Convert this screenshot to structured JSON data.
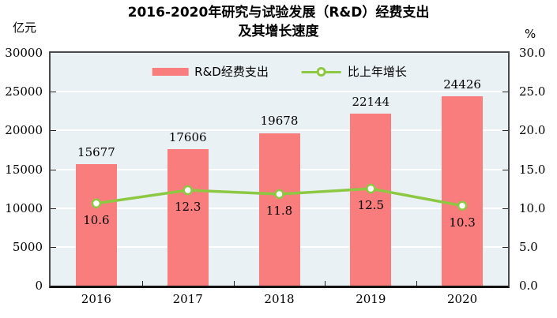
{
  "title": {
    "line1": "2016-2020年研究与试验发展（R&D）经费支出",
    "line2": "及其增长速度"
  },
  "axes": {
    "left_unit": "亿元",
    "right_unit": "%",
    "left_ticks": [
      "0",
      "5000",
      "10000",
      "15000",
      "20000",
      "25000",
      "30000"
    ],
    "right_ticks": [
      "0.0",
      "5.0",
      "10.0",
      "15.0",
      "20.0",
      "25.0",
      "30.0"
    ]
  },
  "legend": {
    "bar_label": "R&D经费支出",
    "line_label": "比上年增长"
  },
  "chart_data": {
    "type": "bar",
    "title": "2016-2020年研究与试验发展（R&D）经费支出及其增长速度",
    "categories": [
      "2016",
      "2017",
      "2018",
      "2019",
      "2020"
    ],
    "series": [
      {
        "name": "R&D经费支出",
        "type": "bar",
        "axis": "left",
        "unit": "亿元",
        "values": [
          15677,
          17606,
          19678,
          22144,
          24426
        ]
      },
      {
        "name": "比上年增长",
        "type": "line",
        "axis": "right",
        "unit": "%",
        "values": [
          10.6,
          12.3,
          11.8,
          12.5,
          10.3
        ]
      }
    ],
    "bar_labels": [
      "15677",
      "17606",
      "19678",
      "22144",
      "24426"
    ],
    "line_labels": [
      "10.6",
      "12.3",
      "11.8",
      "12.5",
      "10.3"
    ],
    "left_axis": {
      "label": "亿元",
      "range": [
        0,
        30000
      ],
      "step": 5000
    },
    "right_axis": {
      "label": "%",
      "range": [
        0,
        30.0
      ],
      "step": 5.0
    },
    "grid": true,
    "legend_position": "top-inside"
  },
  "colors": {
    "bar": "#F97D7D",
    "line": "#8DC843",
    "marker_fill": "#FFFFFF",
    "plot_bg": "#EAF1F5",
    "grid": "#FFFFFF",
    "text": "#000000"
  }
}
